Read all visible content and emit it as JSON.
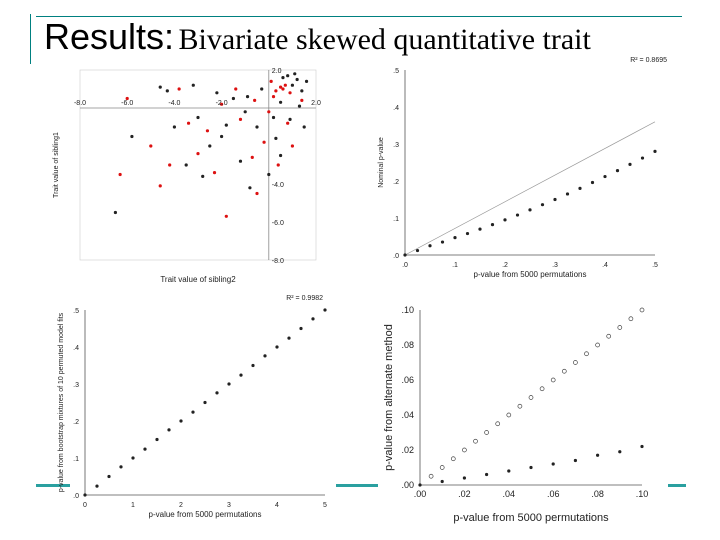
{
  "slide": {
    "title_main": "Results:",
    "title_sub": "Bivariate skewed quantitative trait",
    "accent_color": "#008080"
  },
  "chart_data": [
    {
      "type": "scatter",
      "xlabel": "Trait value of sibling2",
      "ylabel": "Trait value of sibling1",
      "xlim": [
        -8.0,
        2.0
      ],
      "ylim": [
        -8.0,
        2.0
      ],
      "x_ticks": [
        "-8.0",
        "-6.0",
        "-4.0",
        "-2.0",
        "2.0"
      ],
      "y_ticks": [
        "2.0",
        "-4.0",
        "-6.0",
        "-8.0"
      ],
      "grid": false,
      "series": [
        {
          "color": "#222222",
          "points": [
            [
              1.2,
              1.5
            ],
            [
              1.0,
              1.2
            ],
            [
              0.8,
              1.7
            ],
            [
              1.4,
              0.9
            ],
            [
              0.5,
              0.3
            ],
            [
              0.2,
              -0.5
            ],
            [
              -0.5,
              -1.0
            ],
            [
              -1.0,
              -0.2
            ],
            [
              -1.5,
              0.5
            ],
            [
              -2.0,
              -1.5
            ],
            [
              -2.5,
              -2.0
            ],
            [
              -3.0,
              -0.5
            ],
            [
              -3.5,
              -3.0
            ],
            [
              -4.0,
              -1.0
            ],
            [
              -4.3,
              0.9
            ],
            [
              -4.6,
              1.1
            ],
            [
              -5.8,
              -1.5
            ],
            [
              -6.5,
              -5.5
            ],
            [
              0.0,
              -3.5
            ],
            [
              -0.8,
              -4.2
            ],
            [
              0.5,
              -2.5
            ],
            [
              1.5,
              -1.0
            ],
            [
              -1.2,
              -2.8
            ],
            [
              -2.2,
              0.8
            ],
            [
              1.3,
              0.1
            ],
            [
              0.9,
              -0.6
            ],
            [
              -0.3,
              1.0
            ],
            [
              -1.8,
              -0.9
            ],
            [
              0.3,
              -1.6
            ],
            [
              -2.8,
              -3.6
            ],
            [
              1.1,
              1.8
            ],
            [
              1.6,
              1.4
            ],
            [
              0.6,
              1.6
            ],
            [
              -3.2,
              1.2
            ],
            [
              -0.9,
              0.6
            ]
          ]
        },
        {
          "color": "#dd1111",
          "points": [
            [
              0.7,
              1.2
            ],
            [
              0.6,
              1.0
            ],
            [
              0.9,
              0.8
            ],
            [
              0.5,
              1.1
            ],
            [
              0.2,
              0.6
            ],
            [
              0.0,
              -0.2
            ],
            [
              -0.6,
              0.4
            ],
            [
              -1.2,
              -0.6
            ],
            [
              -2.0,
              0.2
            ],
            [
              -2.6,
              -1.2
            ],
            [
              -3.0,
              -2.4
            ],
            [
              -4.2,
              -3.0
            ],
            [
              -5.0,
              -2.0
            ],
            [
              -6.3,
              -3.5
            ],
            [
              -1.8,
              -5.7
            ],
            [
              -0.5,
              -4.5
            ],
            [
              0.4,
              -3.0
            ],
            [
              1.0,
              -2.0
            ],
            [
              -1.4,
              1.0
            ],
            [
              -3.8,
              1.0
            ],
            [
              -6.0,
              0.5
            ],
            [
              0.8,
              -0.8
            ],
            [
              -0.2,
              -1.8
            ],
            [
              -2.3,
              -3.4
            ],
            [
              1.4,
              0.4
            ],
            [
              0.3,
              0.9
            ],
            [
              -0.7,
              -2.6
            ],
            [
              -3.4,
              -0.8
            ],
            [
              -4.6,
              -4.1
            ],
            [
              0.1,
              1.4
            ]
          ]
        }
      ]
    },
    {
      "type": "scatter",
      "xlabel": "p-value from 5000 permutations",
      "ylabel": "Nominal p-value",
      "annotation": "R² = 0.8695",
      "xlim": [
        0.0,
        0.5
      ],
      "ylim": [
        0.0,
        0.5
      ],
      "x_ticks": [
        ".0",
        ".1",
        ".2",
        ".3",
        ".4",
        ".5"
      ],
      "y_ticks": [
        ".0",
        ".1",
        ".2",
        ".3",
        ".4",
        ".5"
      ],
      "reference_line": [
        [
          0.0,
          0.0
        ],
        [
          0.5,
          0.36
        ]
      ],
      "series": [
        {
          "color": "#222222",
          "points": [
            [
              0.0,
              0.0
            ],
            [
              0.025,
              0.012
            ],
            [
              0.05,
              0.025
            ],
            [
              0.075,
              0.035
            ],
            [
              0.1,
              0.047
            ],
            [
              0.125,
              0.058
            ],
            [
              0.15,
              0.07
            ],
            [
              0.175,
              0.082
            ],
            [
              0.2,
              0.095
            ],
            [
              0.225,
              0.108
            ],
            [
              0.25,
              0.122
            ],
            [
              0.275,
              0.136
            ],
            [
              0.3,
              0.15
            ],
            [
              0.325,
              0.165
            ],
            [
              0.35,
              0.18
            ],
            [
              0.375,
              0.196
            ],
            [
              0.4,
              0.212
            ],
            [
              0.425,
              0.228
            ],
            [
              0.45,
              0.245
            ],
            [
              0.475,
              0.262
            ],
            [
              0.5,
              0.28
            ]
          ]
        }
      ]
    },
    {
      "type": "scatter",
      "xlabel": "p-value from 5000 permutations",
      "ylabel": "p-value from bootstrap mixtures of 10 permuted model fits",
      "annotation": "R² = 0.9982",
      "xlim": [
        0.0,
        0.5
      ],
      "ylim": [
        0.0,
        0.5
      ],
      "x_ticks": [
        "0",
        "1",
        "2",
        "3",
        "4",
        "5"
      ],
      "y_ticks": [
        ".0",
        ".1",
        ".2",
        ".3",
        ".4",
        ".5"
      ],
      "series": [
        {
          "color": "#222222",
          "points": [
            [
              0.0,
              0.0
            ],
            [
              0.025,
              0.024
            ],
            [
              0.05,
              0.05
            ],
            [
              0.075,
              0.076
            ],
            [
              0.1,
              0.1
            ],
            [
              0.125,
              0.124
            ],
            [
              0.15,
              0.15
            ],
            [
              0.175,
              0.176
            ],
            [
              0.2,
              0.2
            ],
            [
              0.225,
              0.224
            ],
            [
              0.25,
              0.25
            ],
            [
              0.275,
              0.276
            ],
            [
              0.3,
              0.3
            ],
            [
              0.325,
              0.324
            ],
            [
              0.35,
              0.35
            ],
            [
              0.375,
              0.376
            ],
            [
              0.4,
              0.4
            ],
            [
              0.425,
              0.424
            ],
            [
              0.45,
              0.45
            ],
            [
              0.475,
              0.476
            ],
            [
              0.5,
              0.5
            ]
          ]
        }
      ]
    },
    {
      "type": "scatter",
      "xlabel": "p-value from 5000 permutations",
      "ylabel": "p-value from alternate method",
      "xlim": [
        0.0,
        0.1
      ],
      "ylim": [
        0.0,
        0.1
      ],
      "x_ticks": [
        ".00",
        ".02",
        ".04",
        ".06",
        ".08",
        ".10"
      ],
      "y_ticks": [
        ".00",
        ".02",
        ".04",
        ".06",
        ".08",
        ".10"
      ],
      "series": [
        {
          "color": "#444444",
          "marker": "open",
          "points": [
            [
              0.005,
              0.005
            ],
            [
              0.01,
              0.01
            ],
            [
              0.015,
              0.015
            ],
            [
              0.02,
              0.02
            ],
            [
              0.025,
              0.025
            ],
            [
              0.03,
              0.03
            ],
            [
              0.035,
              0.035
            ],
            [
              0.04,
              0.04
            ],
            [
              0.045,
              0.045
            ],
            [
              0.05,
              0.05
            ],
            [
              0.055,
              0.055
            ],
            [
              0.06,
              0.06
            ],
            [
              0.065,
              0.065
            ],
            [
              0.07,
              0.07
            ],
            [
              0.075,
              0.075
            ],
            [
              0.08,
              0.08
            ],
            [
              0.085,
              0.085
            ],
            [
              0.09,
              0.09
            ],
            [
              0.095,
              0.095
            ],
            [
              0.1,
              0.1
            ]
          ]
        },
        {
          "color": "#222222",
          "marker": "filled",
          "points": [
            [
              0.0,
              0.0
            ],
            [
              0.01,
              0.002
            ],
            [
              0.02,
              0.004
            ],
            [
              0.03,
              0.006
            ],
            [
              0.04,
              0.008
            ],
            [
              0.05,
              0.01
            ],
            [
              0.06,
              0.012
            ],
            [
              0.07,
              0.014
            ],
            [
              0.08,
              0.017
            ],
            [
              0.09,
              0.019
            ],
            [
              0.1,
              0.022
            ]
          ]
        }
      ]
    }
  ]
}
